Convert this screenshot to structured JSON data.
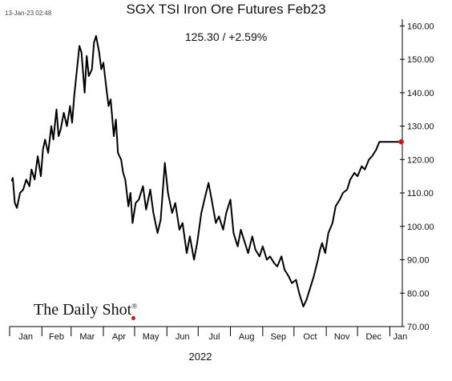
{
  "header": {
    "timestamp": "13-Jan-23 02:48"
  },
  "chart_data": {
    "type": "line",
    "title": "SGX TSI Iron Ore Futures Feb23",
    "subtitle": "125.30  /  +2.59%",
    "xlabel": "2022",
    "ylabel": "",
    "x_tick_labels": [
      "Jan",
      "Feb",
      "Mar",
      "Apr",
      "May",
      "Jun",
      "Jul",
      "Aug",
      "Sep",
      "Oct",
      "Nov",
      "Dec",
      "Jan"
    ],
    "y_tick_labels": [
      "70.00",
      "80.00",
      "90.00",
      "100.00",
      "110.00",
      "120.00",
      "130.00",
      "140.00",
      "150.00",
      "160.00"
    ],
    "ylim": [
      70,
      162
    ],
    "xlim": [
      "2022-01-01",
      "2023-01-13"
    ],
    "grid": false,
    "last_point_color": "#e01010",
    "line_color": "#000000",
    "series": [
      {
        "x": [
          "2022-01-03",
          "2022-01-04",
          "2022-01-06",
          "2022-01-08",
          "2022-01-11",
          "2022-01-14",
          "2022-01-17",
          "2022-01-20",
          "2022-01-22",
          "2022-01-25",
          "2022-01-28",
          "2022-01-31",
          "2022-02-02",
          "2022-02-04",
          "2022-02-07",
          "2022-02-10",
          "2022-02-12",
          "2022-02-15",
          "2022-02-17",
          "2022-02-19",
          "2022-02-22",
          "2022-02-25",
          "2022-02-28",
          "2022-03-02",
          "2022-03-04",
          "2022-03-07",
          "2022-03-09",
          "2022-03-11",
          "2022-03-14",
          "2022-03-16",
          "2022-03-18",
          "2022-03-21",
          "2022-03-23",
          "2022-03-25",
          "2022-03-28",
          "2022-03-30",
          "2022-04-01",
          "2022-04-04",
          "2022-04-06",
          "2022-04-08",
          "2022-04-11",
          "2022-04-13",
          "2022-04-15",
          "2022-04-18",
          "2022-04-20",
          "2022-04-22",
          "2022-04-25",
          "2022-04-27",
          "2022-04-29",
          "2022-05-02",
          "2022-05-05",
          "2022-05-09",
          "2022-05-12",
          "2022-05-16",
          "2022-05-19",
          "2022-05-23",
          "2022-05-26",
          "2022-05-30",
          "2022-06-02",
          "2022-06-06",
          "2022-06-09",
          "2022-06-13",
          "2022-06-16",
          "2022-06-20",
          "2022-06-23",
          "2022-06-27",
          "2022-06-30",
          "2022-07-04",
          "2022-07-07",
          "2022-07-11",
          "2022-07-14",
          "2022-07-18",
          "2022-07-21",
          "2022-07-25",
          "2022-07-28",
          "2022-08-01",
          "2022-08-04",
          "2022-08-08",
          "2022-08-11",
          "2022-08-15",
          "2022-08-18",
          "2022-08-22",
          "2022-08-25",
          "2022-08-29",
          "2022-09-01",
          "2022-09-05",
          "2022-09-08",
          "2022-09-12",
          "2022-09-15",
          "2022-09-19",
          "2022-09-22",
          "2022-09-26",
          "2022-09-29",
          "2022-10-03",
          "2022-10-06",
          "2022-10-10",
          "2022-10-13",
          "2022-10-17",
          "2022-10-20",
          "2022-10-24",
          "2022-10-26",
          "2022-10-28",
          "2022-10-31",
          "2022-11-03",
          "2022-11-07",
          "2022-11-10",
          "2022-11-14",
          "2022-11-17",
          "2022-11-21",
          "2022-11-24",
          "2022-11-28",
          "2022-12-01",
          "2022-12-05",
          "2022-12-08",
          "2022-12-12",
          "2022-12-15",
          "2022-12-19",
          "2022-12-22",
          "2022-12-26",
          "2022-12-29",
          "2023-01-02",
          "2023-01-05",
          "2023-01-09",
          "2023-01-12"
        ],
        "values": [
          113.5,
          114.5,
          107,
          105.5,
          110,
          111,
          114,
          112,
          117,
          114,
          121,
          115,
          123,
          126,
          122,
          130,
          126,
          135,
          127,
          129,
          134,
          130,
          136,
          131,
          139,
          148,
          154,
          152,
          140,
          151,
          145,
          147,
          155,
          157,
          152,
          147,
          149,
          141,
          136,
          138,
          127,
          132,
          122,
          120,
          116,
          114,
          106,
          110,
          101,
          107,
          108,
          112,
          105,
          111,
          104,
          98,
          102,
          119,
          110,
          104,
          107,
          99,
          101,
          92,
          97,
          90,
          95,
          104,
          108,
          113,
          108,
          101,
          103,
          99,
          104,
          108,
          98,
          94,
          99,
          95,
          92,
          97,
          93,
          91,
          94,
          90,
          91,
          89,
          88,
          91,
          87,
          85,
          83,
          84,
          80,
          76,
          78,
          82,
          85,
          90,
          93,
          95,
          92,
          98,
          101,
          106,
          108,
          110,
          111,
          114,
          116,
          115,
          118,
          117,
          120,
          121,
          123,
          125.3,
          125.3,
          125.3,
          125.3,
          125.3,
          125.3,
          125.3
        ]
      }
    ]
  }
}
